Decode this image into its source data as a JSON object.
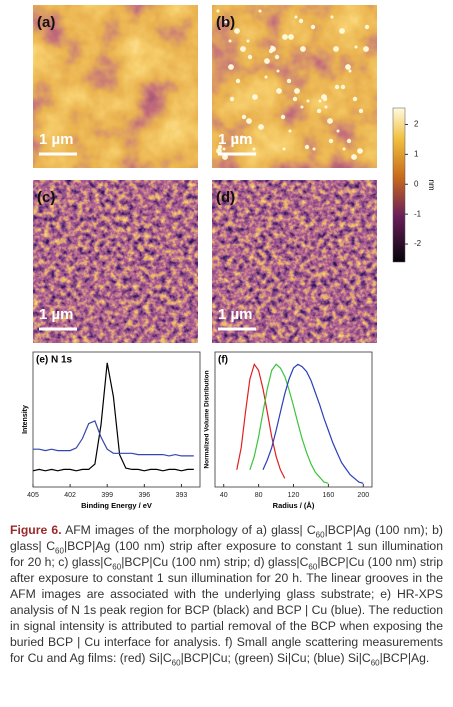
{
  "panels": [
    {
      "label": "(a)",
      "scale_bar": "1 µm"
    },
    {
      "label": "(b)",
      "scale_bar": "1 µm"
    },
    {
      "label": "(c)",
      "scale_bar": "1 µm"
    },
    {
      "label": "(d)",
      "scale_bar": "1 µm"
    }
  ],
  "colorbar": {
    "unit": "nm",
    "lim": [
      -2.6,
      2.55
    ],
    "ticks": [
      2,
      1,
      0,
      -1,
      -2
    ]
  },
  "chart_data": [
    {
      "type": "line",
      "title": "(e) N 1s",
      "x_label": "Binding Energy / eV",
      "y_label": "Intensity",
      "x": [
        405,
        404.5,
        404,
        403.5,
        403,
        402.5,
        402,
        401.5,
        401,
        400.5,
        400,
        399.5,
        399,
        398.5,
        398,
        397.5,
        397,
        396.5,
        396,
        395.5,
        395,
        394.5,
        394,
        393.5,
        393,
        392.5,
        392
      ],
      "xlim": [
        405,
        391.5
      ],
      "xticks": [
        405,
        402,
        399,
        396,
        393
      ],
      "ylim": [
        0,
        100
      ],
      "series": [
        {
          "color": "#000000",
          "values": [
            12,
            13,
            12,
            13,
            12,
            13,
            13,
            12,
            13,
            13,
            17,
            46,
            92,
            67,
            24,
            14,
            13,
            13,
            12,
            13,
            13,
            12,
            13,
            13,
            12,
            13,
            13
          ]
        },
        {
          "color": "#3446b0",
          "values": [
            28,
            28,
            27,
            28,
            27,
            27,
            27,
            29,
            36,
            47,
            49,
            37,
            28,
            25,
            25,
            25,
            25,
            24,
            24,
            24,
            24,
            24,
            23,
            24,
            23,
            23,
            23
          ]
        }
      ]
    },
    {
      "type": "line",
      "title": "(f)",
      "x_label": "Radius / (Å)",
      "y_label": "Normalized Volume Distribution",
      "x": [
        50,
        55,
        60,
        65,
        70,
        75,
        80,
        85,
        90,
        95,
        100,
        105,
        110,
        115,
        120,
        125,
        130,
        135,
        140,
        145,
        150,
        155,
        160,
        165,
        170,
        175,
        180,
        185,
        190,
        195,
        200
      ],
      "xlim": [
        30,
        210
      ],
      "xticks": [
        40,
        80,
        120,
        160,
        200
      ],
      "ylim": [
        0,
        1.1
      ],
      "series": [
        {
          "color": "#e02020",
          "values": [
            null,
            0.14,
            0.32,
            0.61,
            0.88,
            1,
            0.95,
            0.8,
            0.61,
            0.41,
            0.25,
            0.14,
            0.07,
            null,
            null,
            null,
            null,
            null,
            null,
            null,
            null,
            null,
            null,
            null,
            null,
            null,
            null,
            null,
            null,
            null,
            null
          ]
        },
        {
          "color": "#3cc43c",
          "values": [
            null,
            null,
            null,
            null,
            0.14,
            0.25,
            0.41,
            0.61,
            0.8,
            0.95,
            1,
            0.97,
            0.9,
            0.79,
            0.66,
            0.52,
            0.39,
            0.28,
            0.19,
            0.12,
            0.08,
            0.04,
            0.03,
            null,
            null,
            null,
            null,
            null,
            null,
            null,
            null
          ]
        },
        {
          "color": "#2a3fb8",
          "values": [
            null,
            null,
            null,
            null,
            null,
            null,
            null,
            0.14,
            0.22,
            0.32,
            0.46,
            0.61,
            0.76,
            0.88,
            0.97,
            1,
            0.98,
            0.94,
            0.87,
            0.77,
            0.67,
            0.56,
            0.46,
            0.36,
            0.28,
            0.2,
            0.15,
            0.1,
            0.07,
            0.04,
            0.03
          ]
        }
      ]
    }
  ],
  "caption": {
    "runs": [
      {
        "t": "Figure 6.",
        "bold": true
      },
      {
        "t": " AFM images of the morphology of a) glass| C"
      },
      {
        "t": "60",
        "sub": true
      },
      {
        "t": "|BCP|Ag (100 nm); b) glass| C"
      },
      {
        "t": "60",
        "sub": true
      },
      {
        "t": "|BCP|Ag (100 nm) strip after exposure to constant 1 sun illumination for 20 h; c) glass|C"
      },
      {
        "t": "60",
        "sub": true
      },
      {
        "t": "|BCP|Cu (100 nm) strip; d) glass|C"
      },
      {
        "t": "60",
        "sub": true
      },
      {
        "t": "|BCP|Cu (100 nm) strip after exposure to constant 1 sun illumination for 20 h. The linear grooves in the AFM images are associated with the underlying glass substrate; e) HR-XPS analysis of N 1s peak region for BCP (black) and BCP | Cu (blue). The reduction in signal intensity is attributed to partial removal of the BCP when exposing the buried BCP | Cu interface for analysis. f) Small angle scattering measurements for Cu and Ag films: (red) Si|C"
      },
      {
        "t": "60",
        "sub": true
      },
      {
        "t": "|BCP|Cu; (green) Si|Cu; (blue) Si|C"
      },
      {
        "t": "60",
        "sub": true
      },
      {
        "t": "|BCP|Ag."
      }
    ]
  }
}
